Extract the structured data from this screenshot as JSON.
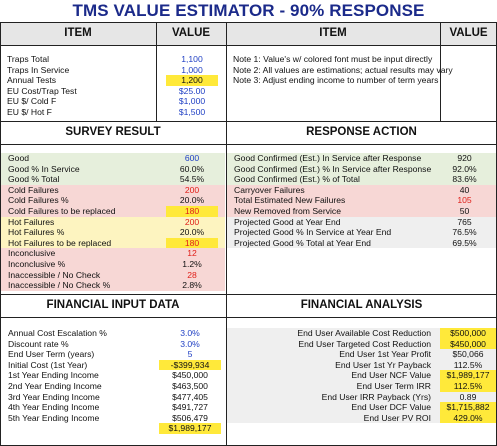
{
  "title": "TMS VALUE ESTIMATOR - 90% RESPONSE",
  "headers": {
    "item": "ITEM",
    "value": "VALUE"
  },
  "inputs": [
    {
      "label": "Traps Total",
      "value": "1,100",
      "style": "blue"
    },
    {
      "label": "Traps In Service",
      "value": "1,000",
      "style": "blue"
    },
    {
      "label": "Annual Tests",
      "value": "1,200",
      "style": "yel"
    },
    {
      "label": "EU Cost/Trap Test",
      "value": "$25.00",
      "style": "blue"
    },
    {
      "label": "EU $/ Cold F",
      "value": "$1,000",
      "style": "blue"
    },
    {
      "label": "EU $/ Hot F",
      "value": "$1,500",
      "style": "blue"
    }
  ],
  "notes": [
    "Note 1: Value's w/ colored font must be input directly",
    "Note 2: All values are estimations; actual results may vary",
    "Note 3: Adjust ending income to number of term years"
  ],
  "survey": {
    "title": "SURVEY RESULT",
    "rows": [
      {
        "label": "Good",
        "value": "600",
        "bg": "green",
        "fc": "blue"
      },
      {
        "label": "Good % In Service",
        "value": "60.0%",
        "bg": "green",
        "fc": ""
      },
      {
        "label": "Good % Total",
        "value": "54.5%",
        "bg": "green",
        "fc": ""
      },
      {
        "label": "Cold Failures",
        "value": "200",
        "bg": "pink",
        "fc": "red"
      },
      {
        "label": "Cold Failures %",
        "value": "20.0%",
        "bg": "pink",
        "fc": ""
      },
      {
        "label": "Cold Failures to be replaced",
        "value": "180",
        "bg": "pink",
        "fc": "red",
        "vbg": "yel"
      },
      {
        "label": "Hot Failures",
        "value": "200",
        "bg": "lyel",
        "fc": "red"
      },
      {
        "label": "Hot Failures %",
        "value": "20.0%",
        "bg": "lyel",
        "fc": ""
      },
      {
        "label": "Hot Failures to be replaced",
        "value": "180",
        "bg": "lyel",
        "fc": "red",
        "vbg": "yel"
      },
      {
        "label": "Inconclusive",
        "value": "12",
        "bg": "pink",
        "fc": "red"
      },
      {
        "label": "Inconclusive %",
        "value": "1.2%",
        "bg": "pink",
        "fc": ""
      },
      {
        "label": "Inaccessible / No Check",
        "value": "28",
        "bg": "pink",
        "fc": "red"
      },
      {
        "label": "Inaccessible / No Check %",
        "value": "2.8%",
        "bg": "pink",
        "fc": ""
      }
    ]
  },
  "response": {
    "title": "RESPONSE ACTION",
    "rows": [
      {
        "label": "Good Confirmed (Est.) In Service after Response",
        "value": "920",
        "bg": "green",
        "fc": ""
      },
      {
        "label": "Good Confirmed (Est.) % In Service after Response",
        "value": "92.0%",
        "bg": "green",
        "fc": ""
      },
      {
        "label": "Good Confirmed (Est.) % of Total",
        "value": "83.6%",
        "bg": "green",
        "fc": ""
      },
      {
        "label": "Carryover Failures",
        "value": "40",
        "bg": "pink",
        "fc": ""
      },
      {
        "label": "Total Estimated New Failures",
        "value": "105",
        "bg": "pink",
        "fc": "red"
      },
      {
        "label": "New Removed from Service",
        "value": "50",
        "bg": "pink",
        "fc": ""
      },
      {
        "label": "Projected Good at Year End",
        "value": "765",
        "bg": "gray",
        "fc": ""
      },
      {
        "label": "Projected Good % In Service at Year End",
        "value": "76.5%",
        "bg": "gray",
        "fc": ""
      },
      {
        "label": "Projected Good % Total at Year End",
        "value": "69.5%",
        "bg": "gray",
        "fc": ""
      }
    ]
  },
  "financial_input": {
    "title": "FINANCIAL INPUT DATA",
    "rows": [
      {
        "label": "Annual Cost Escalation %",
        "value": "3.0%",
        "fc": "blue",
        "vbg": ""
      },
      {
        "label": "Discount rate %",
        "value": "3.0%",
        "fc": "blue",
        "vbg": ""
      },
      {
        "label": "End User Term (years)",
        "value": "5",
        "fc": "blue",
        "vbg": ""
      },
      {
        "label": "Initial Cost (1st Year)",
        "value": "-$399,934",
        "fc": "",
        "vbg": "yel"
      },
      {
        "label": "1st Year Ending Income",
        "value": "$450,000",
        "fc": "",
        "vbg": ""
      },
      {
        "label": "2nd Year Ending Income",
        "value": "$463,500",
        "fc": "",
        "vbg": ""
      },
      {
        "label": "3rd Year Ending Income",
        "value": "$477,405",
        "fc": "",
        "vbg": ""
      },
      {
        "label": "4th Year Ending Income",
        "value": "$491,727",
        "fc": "",
        "vbg": ""
      },
      {
        "label": "5th Year Ending Income",
        "value": "$506,479",
        "fc": "",
        "vbg": ""
      }
    ],
    "total": "$1,989,177"
  },
  "financial_analysis": {
    "title": "FINANCIAL ANALYSIS",
    "rows": [
      {
        "label": "End User Available Cost Reduction",
        "value": "$500,000",
        "vbg": "yel"
      },
      {
        "label": "End User Targeted Cost Reduction",
        "value": "$450,000",
        "vbg": "yel"
      },
      {
        "label": "End User 1st Year Profit",
        "value": "$50,066",
        "vbg": ""
      },
      {
        "label": "End User 1st Yr Payback",
        "value": "112.5%",
        "vbg": ""
      },
      {
        "label": "End User NCF Value",
        "value": "$1,989,177",
        "vbg": "yel"
      },
      {
        "label": "End User Term IRR",
        "value": "112.5%",
        "vbg": "yel"
      },
      {
        "label": "End User IRR Payback (Yrs)",
        "value": "0.89",
        "vbg": ""
      },
      {
        "label": "End User DCF Value",
        "value": "$1,715,882",
        "vbg": "yel"
      },
      {
        "label": "End User PV ROI",
        "value": "429.0%",
        "vbg": "yel"
      }
    ]
  }
}
